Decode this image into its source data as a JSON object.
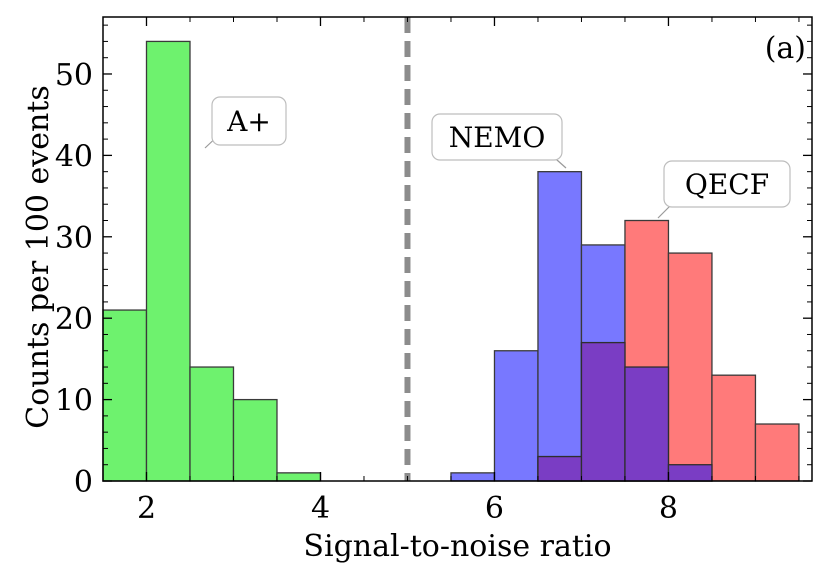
{
  "chart_data": {
    "type": "bar",
    "panel_label": "(a)",
    "xlabel": "Signal-to-noise ratio",
    "ylabel": "Counts per 100 events",
    "xlim": [
      1.5,
      9.65
    ],
    "ylim": [
      0,
      57
    ],
    "x_ticks": [
      2,
      4,
      6,
      8
    ],
    "y_ticks": [
      0,
      10,
      20,
      30,
      40,
      50
    ],
    "bin_width": 0.5,
    "threshold_x": 5.0,
    "series": [
      {
        "name": "A+",
        "color": "#6ef26e",
        "bins": [
          {
            "x0": 1.5,
            "value": 21
          },
          {
            "x0": 2.0,
            "value": 54
          },
          {
            "x0": 2.5,
            "value": 14
          },
          {
            "x0": 3.0,
            "value": 10
          },
          {
            "x0": 3.5,
            "value": 1
          }
        ]
      },
      {
        "name": "NEMO",
        "color": "#7878ff",
        "bins": [
          {
            "x0": 5.5,
            "value": 1
          },
          {
            "x0": 6.0,
            "value": 16
          },
          {
            "x0": 6.5,
            "value": 38
          },
          {
            "x0": 7.0,
            "value": 29
          },
          {
            "x0": 7.5,
            "value": 14
          },
          {
            "x0": 8.0,
            "value": 2
          }
        ]
      },
      {
        "name": "QECF",
        "color": "#ff7a7a",
        "bins": [
          {
            "x0": 6.5,
            "value": 3
          },
          {
            "x0": 7.0,
            "value": 17
          },
          {
            "x0": 7.5,
            "value": 32
          },
          {
            "x0": 8.0,
            "value": 28
          },
          {
            "x0": 8.5,
            "value": 13
          },
          {
            "x0": 9.0,
            "value": 7
          }
        ]
      }
    ],
    "overlap_color": "#7a3dc4",
    "annotations": [
      {
        "text": "A+"
      },
      {
        "text": "NEMO"
      },
      {
        "text": "QECF"
      }
    ],
    "grid": false,
    "threshold_line_color": "#8c8c8c"
  }
}
